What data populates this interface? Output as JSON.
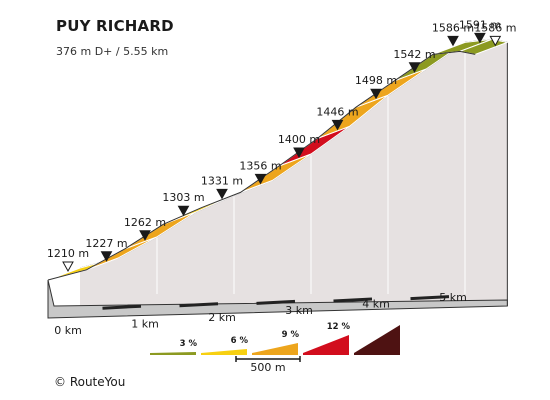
{
  "chart_data": {
    "type": "area",
    "title": "PUY RICHARD",
    "subtitle": "376 m D+ / 5.55 km",
    "distance_unit": "km",
    "elevation_unit": "m",
    "points": [
      {
        "km": 0.0,
        "ele": 1210
      },
      {
        "km": 0.5,
        "ele": 1227
      },
      {
        "km": 1.0,
        "ele": 1262
      },
      {
        "km": 1.5,
        "ele": 1303
      },
      {
        "km": 2.0,
        "ele": 1331
      },
      {
        "km": 2.5,
        "ele": 1356
      },
      {
        "km": 3.0,
        "ele": 1400
      },
      {
        "km": 3.5,
        "ele": 1446
      },
      {
        "km": 4.0,
        "ele": 1498
      },
      {
        "km": 4.5,
        "ele": 1542
      },
      {
        "km": 5.0,
        "ele": 1586
      },
      {
        "km": 5.35,
        "ele": 1591
      },
      {
        "km": 5.55,
        "ele": 1586
      }
    ],
    "segment_grade_classes": [
      "6",
      "9",
      "9",
      "6",
      "6",
      "9",
      "12",
      "9",
      "9",
      "3",
      "3",
      "3"
    ],
    "x_ticks": [
      "0 km",
      "1 km",
      "2 km",
      "3 km",
      "4 km",
      "5 km"
    ],
    "legend": {
      "grades": [
        "3 %",
        "6 %",
        "9 %",
        "12 %"
      ],
      "scale_label": "500 m"
    },
    "colors": {
      "3": "#8c9a21",
      "6": "#f7d011",
      "9": "#eda51d",
      "12": "#d20d1d",
      "16": "#4e1212",
      "side": "#e6e1e1",
      "base": "#c8c8c8"
    }
  },
  "footer": {
    "copyright": "© RouteYou"
  }
}
